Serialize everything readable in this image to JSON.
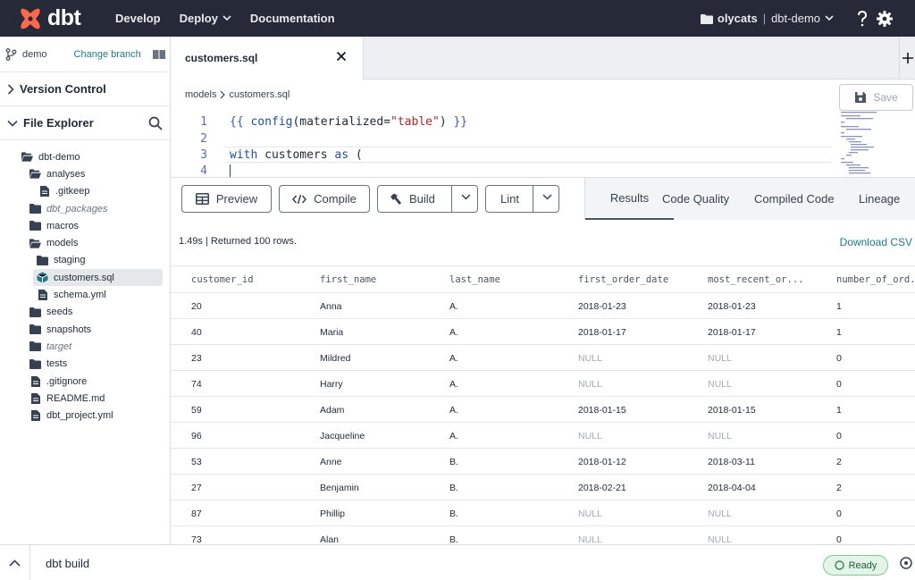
{
  "topbar": {
    "logo_text": "dbt",
    "nav": [
      {
        "label": "Develop"
      },
      {
        "label": "Deploy"
      },
      {
        "label": "Documentation"
      }
    ],
    "account": "olycats",
    "project": "dbt-demo"
  },
  "sidebar": {
    "branch": "demo",
    "change_branch": "Change branch",
    "version_control": "Version Control",
    "file_explorer": "File Explorer",
    "tree": [
      {
        "label": "dbt-demo",
        "type": "folder-open"
      },
      {
        "label": "analyses",
        "type": "folder-open"
      },
      {
        "label": ".gitkeep",
        "type": "file"
      },
      {
        "label": "dbt_packages",
        "type": "folder",
        "italic": true
      },
      {
        "label": "macros",
        "type": "folder"
      },
      {
        "label": "models",
        "type": "folder-open"
      },
      {
        "label": "staging",
        "type": "folder"
      },
      {
        "label": "customers.sql",
        "type": "model",
        "selected": true
      },
      {
        "label": "schema.yml",
        "type": "file"
      },
      {
        "label": "seeds",
        "type": "folder"
      },
      {
        "label": "snapshots",
        "type": "folder"
      },
      {
        "label": "target",
        "type": "folder",
        "italic": true
      },
      {
        "label": "tests",
        "type": "folder"
      },
      {
        "label": ".gitignore",
        "type": "file"
      },
      {
        "label": "README.md",
        "type": "file"
      },
      {
        "label": "dbt_project.yml",
        "type": "file"
      }
    ]
  },
  "editor": {
    "tab_label": "customers.sql",
    "breadcrumb": [
      "models",
      "customers.sql"
    ],
    "save_label": "Save",
    "line_numbers": [
      "1",
      "2",
      "3",
      "4"
    ]
  },
  "toolbar": {
    "preview": "Preview",
    "compile": "Compile",
    "build": "Build",
    "lint": "Lint",
    "tabs": [
      "Results",
      "Code Quality",
      "Compiled Code",
      "Lineage"
    ]
  },
  "results": {
    "info": "1.49s | Returned 100 rows.",
    "download": "Download CSV",
    "columns": [
      "customer_id",
      "first_name",
      "last_name",
      "first_order_date",
      "most_recent_or...",
      "number_of_ord..."
    ],
    "rows": [
      [
        "20",
        "Anna",
        "A.",
        "2018-01-23",
        "2018-01-23",
        "1"
      ],
      [
        "40",
        "Maria",
        "A.",
        "2018-01-17",
        "2018-01-17",
        "1"
      ],
      [
        "23",
        "Mildred",
        "A.",
        "NULL",
        "NULL",
        "0"
      ],
      [
        "74",
        "Harry",
        "A.",
        "NULL",
        "NULL",
        "0"
      ],
      [
        "59",
        "Adam",
        "A.",
        "2018-01-15",
        "2018-01-15",
        "1"
      ],
      [
        "96",
        "Jacqueline",
        "A.",
        "NULL",
        "NULL",
        "0"
      ],
      [
        "53",
        "Anne",
        "B.",
        "2018-01-12",
        "2018-03-11",
        "2"
      ],
      [
        "27",
        "Benjamin",
        "B.",
        "2018-02-21",
        "2018-04-04",
        "2"
      ],
      [
        "87",
        "Phillip",
        "B.",
        "NULL",
        "NULL",
        "0"
      ],
      [
        "73",
        "Alan",
        "B.",
        "NULL",
        "NULL",
        "0"
      ]
    ]
  },
  "bottombar": {
    "command": "dbt build",
    "status": "Ready"
  },
  "colors": {
    "brand": "#ff694b",
    "topbar": "#262a38",
    "link": "#1e7b88",
    "ready_bg": "#e3f4e8"
  }
}
